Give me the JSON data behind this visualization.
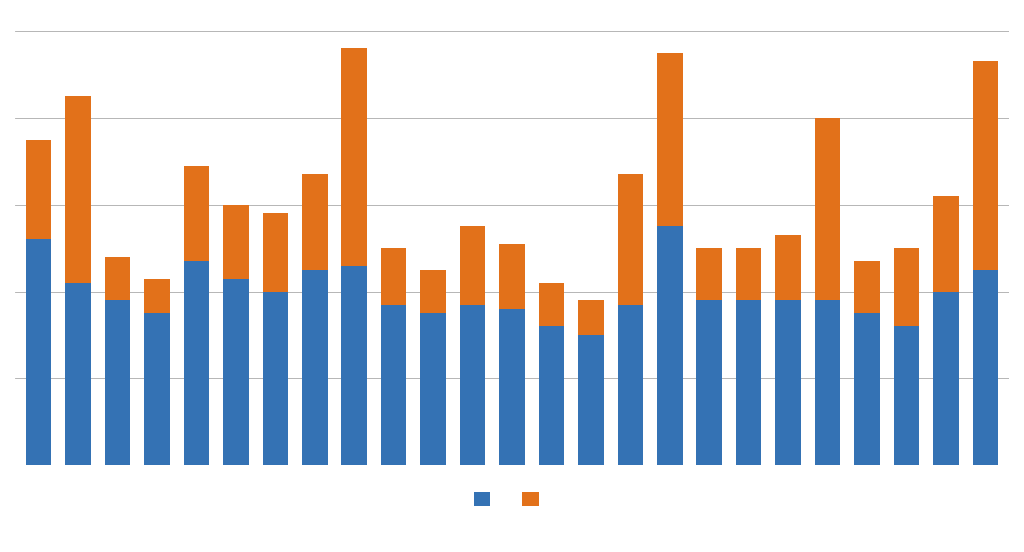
{
  "blue_values": [
    52,
    42,
    38,
    35,
    47,
    43,
    40,
    45,
    46,
    37,
    35,
    37,
    36,
    32,
    30,
    37,
    55,
    38,
    38,
    38,
    38,
    35,
    32,
    40,
    45
  ],
  "orange_values": [
    23,
    43,
    10,
    8,
    22,
    17,
    18,
    22,
    50,
    13,
    10,
    18,
    15,
    10,
    8,
    30,
    40,
    12,
    12,
    15,
    42,
    12,
    18,
    22,
    48
  ],
  "blue_color": "#3472B4",
  "orange_color": "#E2711A",
  "background_color": "#FFFFFF",
  "grid_color": "#AAAAAA",
  "legend_labels": [
    "",
    ""
  ],
  "bar_width": 0.65
}
